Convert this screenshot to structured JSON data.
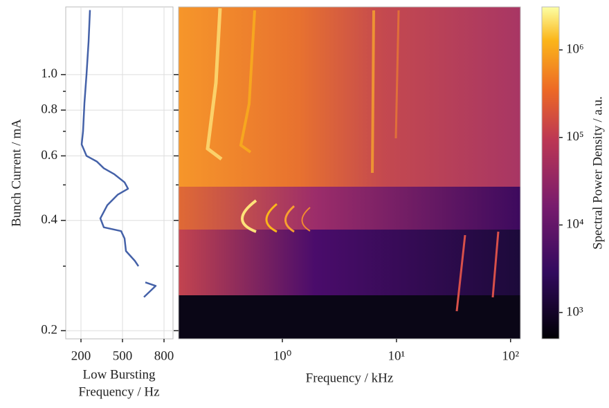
{
  "chart_data": [
    {
      "type": "line",
      "ylabel": "Bunch Current / mA",
      "xlabel": [
        "Low Bursting",
        "Frequency / Hz"
      ],
      "yscale": "log",
      "ylim": [
        0.19,
        1.53
      ],
      "yticks": [
        0.2,
        0.4,
        0.6,
        0.8,
        {
          "value": 1,
          "label": "1.0"
        }
      ],
      "yticks_minor": [
        0.3,
        0.5,
        0.7,
        0.9
      ],
      "xlim": [
        90,
        865
      ],
      "xticks": [
        200,
        500,
        800
      ],
      "grid": true,
      "series": [
        {
          "color": "#4461a8",
          "x": [
            265,
            255,
            240,
            225,
            215,
            205,
            240,
            315,
            365,
            440,
            515,
            540,
            465,
            390,
            340,
            365,
            490,
            515,
            525,
            590,
            615,
            null,
            665,
            740,
            655
          ],
          "values": [
            1.5,
            1.23,
            1.0,
            0.836,
            0.7,
            0.645,
            0.6,
            0.579,
            0.555,
            0.535,
            0.508,
            0.488,
            0.47,
            0.44,
            0.405,
            0.383,
            0.374,
            0.357,
            0.33,
            0.31,
            0.3,
            null,
            0.271,
            0.265,
            0.247
          ]
        }
      ]
    },
    {
      "type": "heatmap",
      "xlabel": "Frequency / kHz",
      "xscale": "log",
      "xlim": [
        0.123,
        122
      ],
      "xticks": [
        {
          "value": 1,
          "label": "10⁰"
        },
        {
          "value": 10,
          "label": "10¹"
        },
        {
          "value": 100,
          "label": "10²"
        }
      ]
    },
    {
      "type": "colorbar",
      "label": "Spectral Power Density / a.u.",
      "scale": "log",
      "lim": [
        500,
        3100000
      ],
      "ticks": [
        {
          "value": 1000,
          "label": "10³"
        },
        {
          "value": 10000,
          "label": "10⁴"
        },
        {
          "value": 100000,
          "label": "10⁵"
        },
        {
          "value": 1000000,
          "label": "10⁶"
        }
      ]
    }
  ]
}
